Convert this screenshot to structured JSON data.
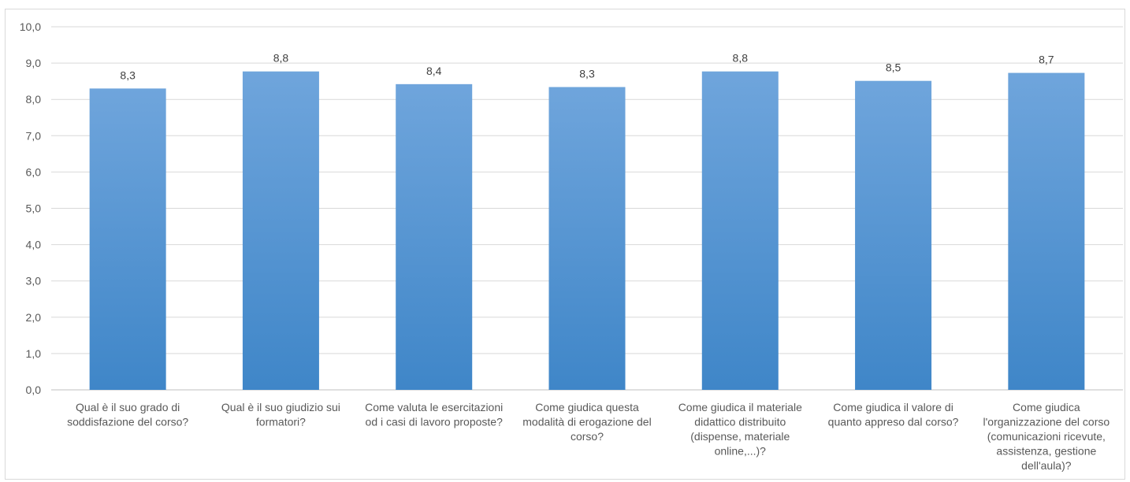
{
  "chart_data": {
    "type": "bar",
    "categories": [
      [
        "Qual è il suo grado di",
        "soddisfazione del corso?"
      ],
      [
        "Qual è il suo giudizio sui",
        "formatori?"
      ],
      [
        "Come valuta le esercitazioni",
        "od i casi di lavoro proposte?"
      ],
      [
        "Come giudica questa",
        "modalità di erogazione del",
        "corso?"
      ],
      [
        "Come giudica il materiale",
        "didattico distribuito",
        "(dispense, materiale",
        "online,...)?"
      ],
      [
        "Come giudica il valore di",
        "quanto appreso dal corso?"
      ],
      [
        "Come giudica",
        "l'organizzazione del corso",
        "(comunicazioni ricevute,",
        "assistenza, gestione",
        "dell'aula)?"
      ]
    ],
    "values": [
      8.3,
      8.77,
      8.42,
      8.34,
      8.77,
      8.51,
      8.73
    ],
    "data_labels": [
      "8,3",
      "8,8",
      "8,4",
      "8,3",
      "8,8",
      "8,5",
      "8,7"
    ],
    "yticks": [
      "0,0",
      "1,0",
      "2,0",
      "3,0",
      "4,0",
      "5,0",
      "6,0",
      "7,0",
      "8,0",
      "9,0",
      "10,0"
    ],
    "ylim": [
      0,
      10
    ],
    "grid": true,
    "legend": "none",
    "bar_color_top": "#6fa5dc",
    "bar_color_bottom": "#3f86c8",
    "grid_color": "#d9d9d9"
  }
}
